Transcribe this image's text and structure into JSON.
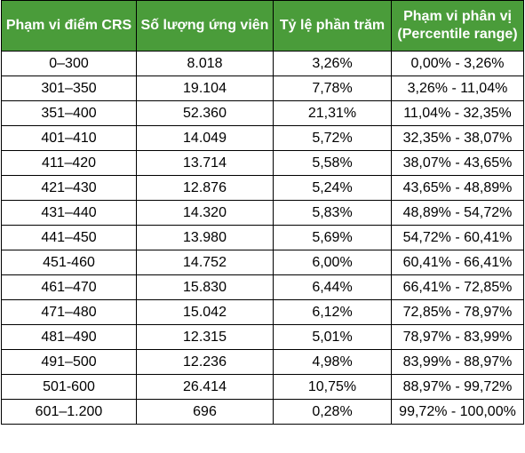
{
  "table": {
    "header_color": "#4a9c3a",
    "headers": [
      {
        "line1": "Phạm vi điểm CRS",
        "line2": ""
      },
      {
        "line1": "Số lượng ứng viên",
        "line2": ""
      },
      {
        "line1": "Tỷ lệ phần trăm",
        "line2": ""
      },
      {
        "line1": "Phạm vi phân vị",
        "line2": "(Percentile range)"
      }
    ],
    "rows": [
      [
        "0–300",
        "8.018",
        "3,26%",
        "0,00% - 3,26%"
      ],
      [
        "301–350",
        "19.104",
        "7,78%",
        "3,26% - 11,04%"
      ],
      [
        "351–400",
        "52.360",
        "21,31%",
        "11,04% - 32,35%"
      ],
      [
        "401–410",
        "14.049",
        "5,72%",
        "32,35% - 38,07%"
      ],
      [
        "411–420",
        "13.714",
        "5,58%",
        "38,07% - 43,65%"
      ],
      [
        "421–430",
        "12.876",
        "5,24%",
        "43,65% - 48,89%"
      ],
      [
        "431–440",
        "14.320",
        "5,83%",
        "48,89% - 54,72%"
      ],
      [
        "441–450",
        "13.980",
        "5,69%",
        "54,72% - 60,41%"
      ],
      [
        "451-460",
        "14.752",
        "6,00%",
        "60,41% - 66,41%"
      ],
      [
        "461–470",
        "15.830",
        "6,44%",
        "66,41% - 72,85%"
      ],
      [
        "471–480",
        "15.042",
        "6,12%",
        "72,85% - 78,97%"
      ],
      [
        "481–490",
        "12.315",
        "5,01%",
        "78,97% - 83,99%"
      ],
      [
        "491–500",
        "12.236",
        "4,98%",
        "83,99% - 88,97%"
      ],
      [
        "501-600",
        "26.414",
        "10,75%",
        "88,97% - 99,72%"
      ],
      [
        "601–1.200",
        "696",
        "0,28%",
        "99,72% - 100,00%"
      ]
    ]
  }
}
